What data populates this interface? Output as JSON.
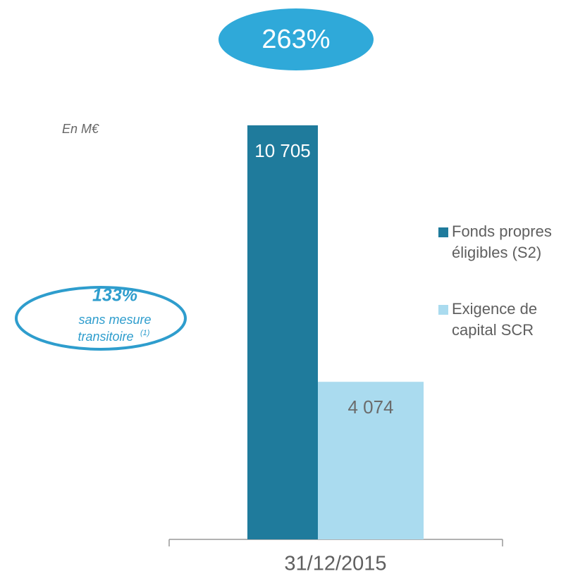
{
  "chart_data": {
    "type": "bar",
    "unit_label": "En M€",
    "categories": [
      "31/12/2015"
    ],
    "series": [
      {
        "name": "Fonds propres éligibles (S2)",
        "color": "#1f7b9c",
        "values": [
          10705
        ],
        "value_labels": [
          "10 705"
        ]
      },
      {
        "name": "Exigence de capital SCR",
        "color": "#aadbef",
        "values": [
          4074
        ],
        "value_labels": [
          "4 074"
        ]
      }
    ],
    "annotations": {
      "ratio": "263%",
      "ratio_without": "133%",
      "ratio_without_line1": "sans mesure",
      "ratio_without_line2": "transitoire",
      "footnote": "(1)"
    },
    "legend": "right"
  }
}
